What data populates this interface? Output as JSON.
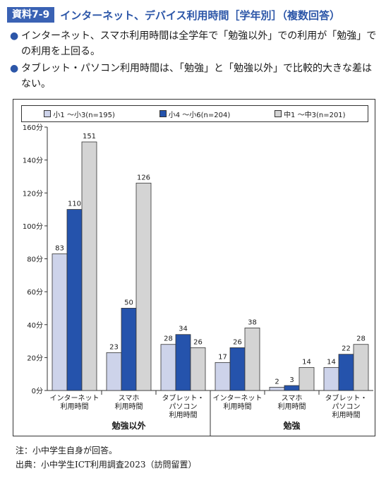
{
  "header": {
    "badge": "資料7-9",
    "title": "インターネット、デバイス利用時間［学年別］（複数回答）"
  },
  "bullets": [
    "インターネット、スマホ利用時間は全学年で「勉強以外」での利用が「勉強」での利用を上回る。",
    "タブレット・パソコン利用時間は、「勉強」と「勉強以外」で比較的大きな差はない。"
  ],
  "bullet_marker": "●",
  "notes": {
    "note": "注：小中学生自身が回答。",
    "source": "出典：小中学生ICT利用調査2023（訪問留置）"
  },
  "chart_data": {
    "type": "bar",
    "ylim": [
      0,
      160
    ],
    "y_ticks": [
      "0分",
      "20分",
      "40分",
      "60分",
      "80分",
      "100分",
      "120分",
      "140分",
      "160分"
    ],
    "categories": [
      [
        "インターネット",
        "利用時間"
      ],
      [
        "スマホ",
        "利用時間"
      ],
      [
        "タブレット・",
        "パソコン",
        "利用時間"
      ],
      [
        "インターネット",
        "利用時間"
      ],
      [
        "スマホ",
        "利用時間"
      ],
      [
        "タブレット・",
        "パソコン",
        "利用時間"
      ]
    ],
    "groups": [
      {
        "label": "勉強以外",
        "categories": [
          0,
          1,
          2
        ]
      },
      {
        "label": "勉強",
        "categories": [
          3,
          4,
          5
        ]
      }
    ],
    "series": [
      {
        "name": "小1 ～小3(n=195)",
        "color": "#cdd3ea",
        "values": [
          83,
          23,
          28,
          17,
          2,
          14
        ]
      },
      {
        "name": "小4 ～小6(n=204)",
        "color": "#2553ac",
        "values": [
          110,
          50,
          34,
          26,
          3,
          22
        ]
      },
      {
        "name": "中1 ～中3(n=201)",
        "color": "#d4d4d4",
        "values": [
          151,
          126,
          26,
          38,
          14,
          28
        ]
      }
    ],
    "grid": false,
    "legend_position": "top"
  }
}
